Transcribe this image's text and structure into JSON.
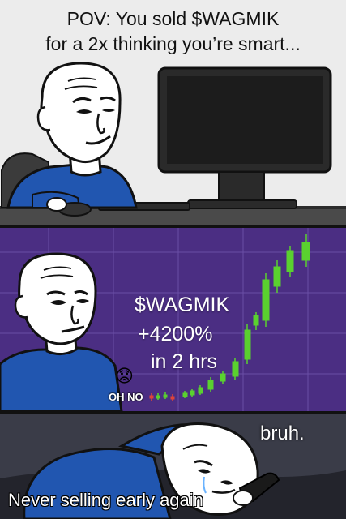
{
  "panel1": {
    "caption_line1": "POV: You sold $WAGMIK",
    "caption_line2": "for a 2x thinking you’re smart..."
  },
  "panel2": {
    "ticker": "$WAGMIK",
    "gain": "+4200%",
    "timeframe": "in 2 hrs",
    "reaction": "OH NO",
    "emoji": "😟"
  },
  "panel3": {
    "reaction": "bruh.",
    "caption": "Never selling early again"
  },
  "colors": {
    "chart_background": "#4b2e83",
    "candle_up": "#5ad12f",
    "candle_down": "#e0443a",
    "shirt": "#2156b0"
  }
}
